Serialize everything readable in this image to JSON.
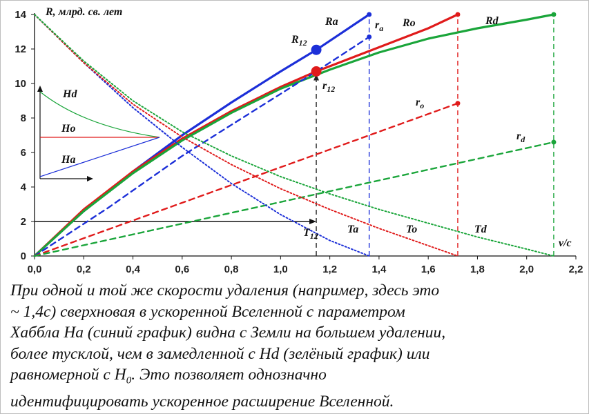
{
  "chart_data": {
    "type": "line",
    "ylabel": "R, млрд. св. лет",
    "xlabel": "v/c",
    "xlim": [
      0.0,
      2.2
    ],
    "ylim": [
      0,
      14
    ],
    "x_ticks": [
      "0,0",
      "0,2",
      "0,4",
      "0,6",
      "0,8",
      "1,0",
      "1,2",
      "1,4",
      "1,6",
      "1,8",
      "2,0",
      "2,2"
    ],
    "y_ticks": [
      "0",
      "2",
      "4",
      "6",
      "8",
      "10",
      "12",
      "14"
    ],
    "grid": false,
    "series": [
      {
        "name": "Ra",
        "color": "#1c2fd8",
        "style": "solid",
        "x": [
          0,
          0.2,
          0.4,
          0.6,
          0.8,
          1.0,
          1.145,
          1.36
        ],
        "y": [
          0,
          2.6,
          4.9,
          7.0,
          8.9,
          10.7,
          11.95,
          14.0
        ]
      },
      {
        "name": "Ro",
        "color": "#e01b1b",
        "style": "solid",
        "x": [
          0,
          0.2,
          0.4,
          0.6,
          0.8,
          1.0,
          1.145,
          1.2,
          1.4,
          1.6,
          1.72
        ],
        "y": [
          0,
          2.7,
          4.9,
          6.8,
          8.4,
          9.8,
          10.7,
          11.0,
          12.1,
          13.2,
          14.0
        ]
      },
      {
        "name": "Rd",
        "color": "#1aa53a",
        "style": "solid",
        "x": [
          0,
          0.2,
          0.4,
          0.6,
          0.8,
          1.0,
          1.2,
          1.4,
          1.6,
          1.8,
          2.0,
          2.11
        ],
        "y": [
          0,
          2.6,
          4.8,
          6.7,
          8.3,
          9.7,
          10.8,
          11.8,
          12.6,
          13.2,
          13.7,
          14.0
        ]
      },
      {
        "name": "ra",
        "color": "#1c2fd8",
        "style": "dashed",
        "x": [
          0,
          0.3,
          0.6,
          0.9,
          1.145,
          1.36
        ],
        "y": [
          0,
          2.8,
          5.8,
          8.5,
          10.7,
          12.7
        ]
      },
      {
        "name": "ro",
        "color": "#e01b1b",
        "style": "dashed",
        "x": [
          0,
          1.72
        ],
        "y": [
          0,
          8.85
        ]
      },
      {
        "name": "rd",
        "color": "#1aa53a",
        "style": "dashed",
        "x": [
          0,
          2.11
        ],
        "y": [
          0,
          6.6
        ]
      },
      {
        "name": "Ta",
        "color": "#1c2fd8",
        "style": "dotted",
        "x": [
          0,
          0.2,
          0.4,
          0.6,
          0.8,
          1.0,
          1.2,
          1.36
        ],
        "y": [
          14.0,
          11.2,
          8.6,
          6.3,
          4.2,
          2.4,
          0.9,
          0
        ]
      },
      {
        "name": "To",
        "color": "#e01b1b",
        "style": "dotted",
        "x": [
          0,
          0.2,
          0.4,
          0.6,
          0.8,
          1.0,
          1.2,
          1.4,
          1.6,
          1.72
        ],
        "y": [
          14.0,
          11.2,
          8.8,
          6.9,
          5.3,
          3.9,
          2.7,
          1.6,
          0.6,
          0
        ]
      },
      {
        "name": "Td",
        "color": "#1aa53a",
        "style": "dotted",
        "x": [
          0,
          0.2,
          0.4,
          0.6,
          0.8,
          1.0,
          1.2,
          1.4,
          1.6,
          1.8,
          2.0,
          2.11
        ],
        "y": [
          14.0,
          11.3,
          9.0,
          7.2,
          5.8,
          4.6,
          3.6,
          2.7,
          1.9,
          1.1,
          0.4,
          0
        ]
      }
    ],
    "vertical_lines": [
      {
        "x": 1.36,
        "color": "#1c2fd8"
      },
      {
        "x": 1.72,
        "color": "#e01b1b"
      },
      {
        "x": 2.11,
        "color": "#1aa53a"
      },
      {
        "x": 1.145,
        "color": "#222222",
        "y_to": 10.7
      }
    ],
    "reference_line": {
      "y": 2,
      "x_from": 0,
      "x_to": 1.145,
      "color": "#111111"
    },
    "highlight_points": [
      {
        "x": 1.145,
        "y": 11.95,
        "color": "#1c2fd8",
        "label": "R12"
      },
      {
        "x": 1.145,
        "y": 10.7,
        "color": "#e01b1b",
        "label": "r12"
      }
    ],
    "annotations": {
      "R12_main": "R",
      "R12_sub": "12",
      "r12_main": "r",
      "r12_sub": "12",
      "T12_main": "T",
      "T12_sub": "12",
      "ra_main": "r",
      "ra_sub": "a",
      "ro_main": "r",
      "ro_sub": "o",
      "rd_main": "r",
      "rd_sub": "d",
      "Ra": "Ra",
      "Ro": "Ro",
      "Rd": "Rd",
      "Ta": "Ta",
      "To": "To",
      "Td": "Td"
    },
    "inset": {
      "labels": [
        "Hd",
        "Ho",
        "Ha"
      ],
      "colors": [
        "#1aa53a",
        "#e01b1b",
        "#1c2fd8"
      ]
    }
  },
  "caption": {
    "line1": "При одной и той же скорости удаления (например, здесь это",
    "line2": "~ 1,4с) сверхновая в ускоренной Вселенной с параметром",
    "line3": "Хаббла На (синий график) видна с Земли на большем удалении,",
    "line4": "более тусклой, чем в замедленной с Hd (зелёный график) или",
    "line5_pre": "равномерной с ",
    "line5_h": "H",
    "line5_sub": "0",
    "line5_post": ". Это позволяет однозначно",
    "line6": "идентифицировать ускоренное расширение Вселенной."
  }
}
